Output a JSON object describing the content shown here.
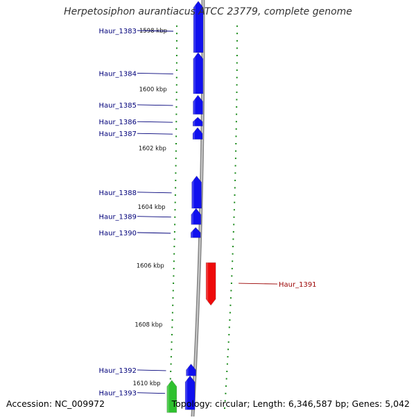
{
  "title": "Herpetosiphon aurantiacus ATCC 23779, complete genome",
  "accession_text": "Accession: NC_009972",
  "summary_text": "Topology: circular; Length: 6,346,587 bp; Genes: 5,042",
  "colors": {
    "forward_gene": "#1010ee",
    "reverse_gene": "#ee0a0a",
    "rna_gene": "#2fc12f",
    "ruler": "#1a8a1a",
    "label_left": "#00007a",
    "label_right": "#9a0000",
    "backbone": "#8a8a8a"
  },
  "ruler_labels": [
    {
      "text": "1598 kbp",
      "kbp": 1598
    },
    {
      "text": "1600 kbp",
      "kbp": 1600
    },
    {
      "text": "1602 kbp",
      "kbp": 1602
    },
    {
      "text": "1604 kbp",
      "kbp": 1604
    },
    {
      "text": "1606 kbp",
      "kbp": 1606
    },
    {
      "text": "1608 kbp",
      "kbp": 1608
    },
    {
      "text": "1610 kbp",
      "kbp": 1610
    }
  ],
  "genes": [
    {
      "name": "Haur_1383",
      "strand": "+",
      "start_kbp": 1597.0,
      "end_kbp": 1598.75,
      "type": "cds"
    },
    {
      "name": "Haur_1384",
      "strand": "+",
      "start_kbp": 1598.75,
      "end_kbp": 1600.15,
      "type": "cds"
    },
    {
      "name": "Haur_1385",
      "strand": "+",
      "start_kbp": 1600.2,
      "end_kbp": 1600.85,
      "type": "cds"
    },
    {
      "name": "Haur_1386",
      "strand": "+",
      "start_kbp": 1600.95,
      "end_kbp": 1601.25,
      "type": "cds"
    },
    {
      "name": "Haur_1387",
      "strand": "+",
      "start_kbp": 1601.3,
      "end_kbp": 1601.7,
      "type": "cds"
    },
    {
      "name": "Haur_1388",
      "strand": "+",
      "start_kbp": 1602.95,
      "end_kbp": 1604.05,
      "type": "cds"
    },
    {
      "name": "Haur_1389",
      "strand": "+",
      "start_kbp": 1604.05,
      "end_kbp": 1604.6,
      "type": "cds"
    },
    {
      "name": "Haur_1390",
      "strand": "+",
      "start_kbp": 1604.7,
      "end_kbp": 1605.05,
      "type": "cds"
    },
    {
      "name": "Haur_1391",
      "strand": "-",
      "start_kbp": 1605.9,
      "end_kbp": 1607.35,
      "type": "cds"
    },
    {
      "name": "Haur_1392",
      "strand": "+",
      "start_kbp": 1609.35,
      "end_kbp": 1609.75,
      "type": "cds"
    },
    {
      "name": "Haur_1393",
      "strand": "+",
      "start_kbp": 1609.75,
      "end_kbp": 1610.9,
      "type": "cds"
    },
    {
      "name": "",
      "strand": "+",
      "start_kbp": 1609.9,
      "end_kbp": 1611.0,
      "type": "rna"
    }
  ]
}
